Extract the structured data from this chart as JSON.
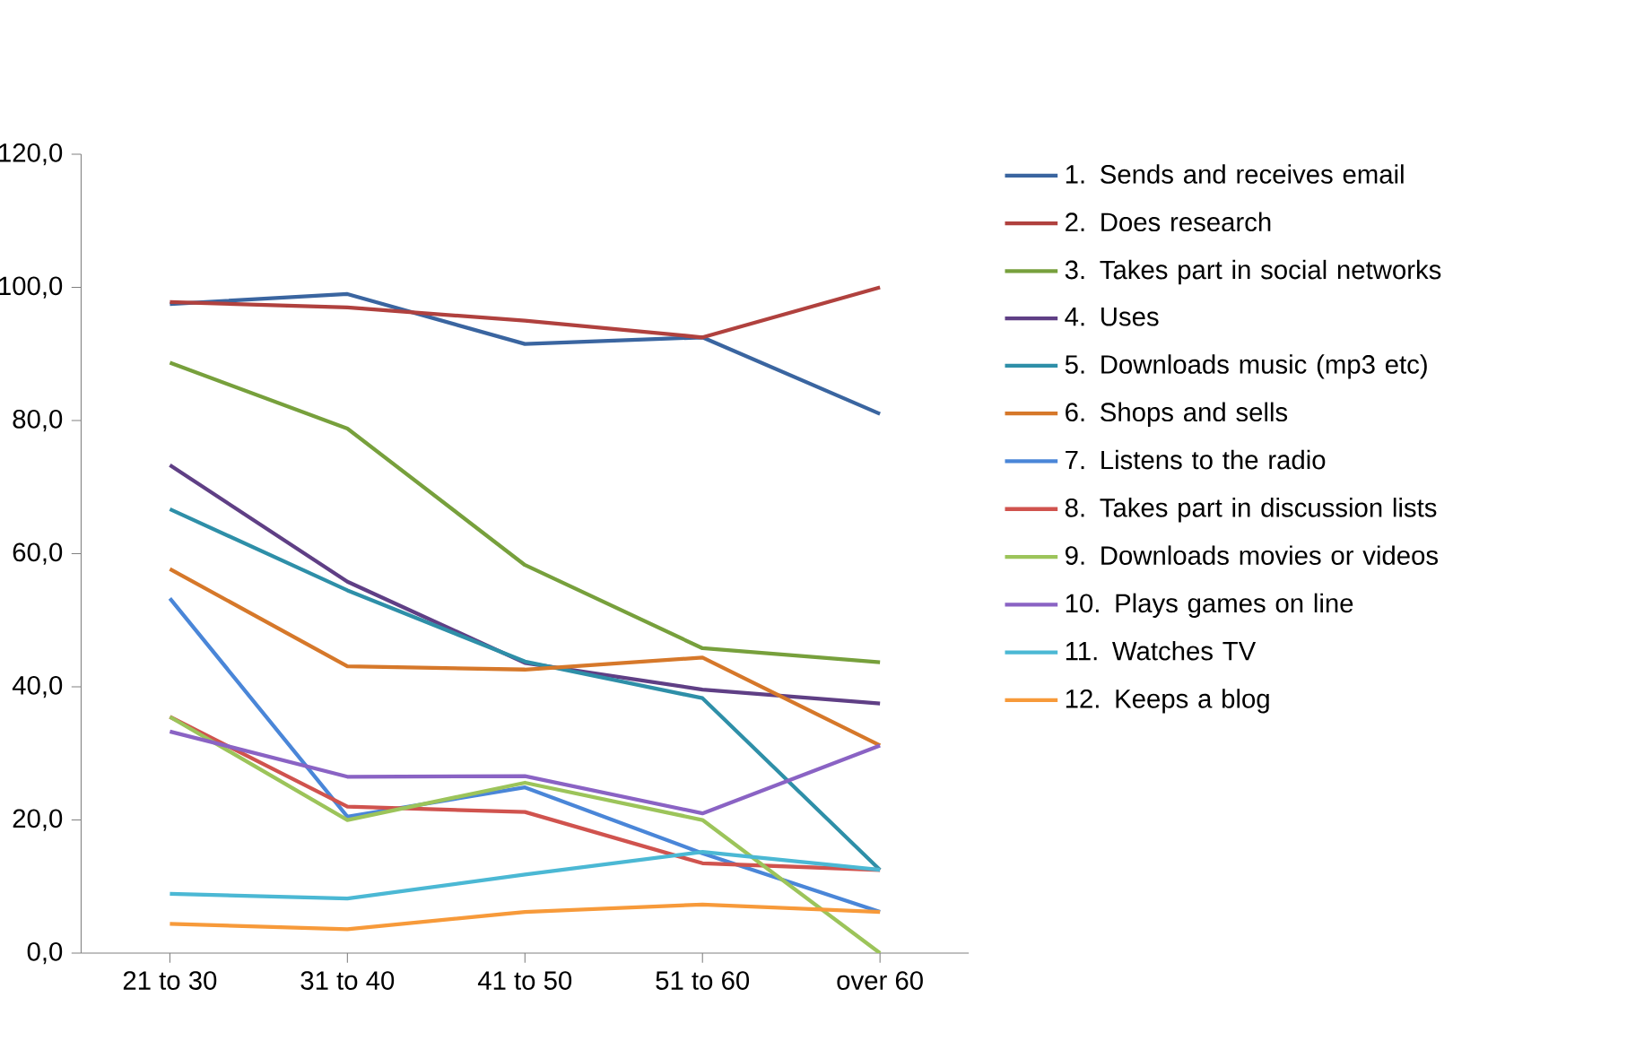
{
  "chart_data": {
    "type": "line",
    "legend": "right",
    "categories": [
      "21 to 30",
      "31 to 40",
      "41 to 50",
      "51 to 60",
      "over 60"
    ],
    "ylim": [
      0,
      120
    ],
    "yticks": [
      {
        "value": 0,
        "label": "0,0"
      },
      {
        "value": 20,
        "label": "20,0"
      },
      {
        "value": 40,
        "label": "40,0"
      },
      {
        "value": 60,
        "label": "60,0"
      },
      {
        "value": 80,
        "label": "80,0"
      },
      {
        "value": 100,
        "label": "100,0"
      },
      {
        "value": 120,
        "label": "120,0"
      }
    ],
    "series": [
      {
        "name": "1. Sends and receives email",
        "color": "#3a65a0",
        "values": [
          97.5,
          99,
          91.5,
          92.5,
          81
        ]
      },
      {
        "name": "2. Does research",
        "color": "#b0413e",
        "values": [
          97.8,
          97,
          95,
          92.5,
          100
        ]
      },
      {
        "name": "3. Takes part in social networks",
        "color": "#77a03c",
        "values": [
          88.7,
          78.8,
          58.3,
          45.8,
          43.7
        ]
      },
      {
        "name": "4. Uses",
        "color": "#5f3f85",
        "values": [
          73.3,
          55.8,
          43.6,
          39.6,
          37.5
        ]
      },
      {
        "name": "5. Downloads music (mp3 etc)",
        "color": "#2e8fa8",
        "values": [
          66.7,
          54.5,
          43.8,
          38.3,
          12.5
        ]
      },
      {
        "name": "6. Shops and sells",
        "color": "#d6782a",
        "values": [
          57.7,
          43.1,
          42.6,
          44.4,
          31.2
        ]
      },
      {
        "name": "7. Listens to the radio",
        "color": "#4a86d8",
        "values": [
          53.3,
          20.5,
          24.9,
          15,
          6.2
        ]
      },
      {
        "name": "8. Takes part in discussion lists",
        "color": "#d0534e",
        "values": [
          35.5,
          22,
          21.2,
          13.5,
          12.5
        ]
      },
      {
        "name": "9. Downloads movies or videos",
        "color": "#9cc45a",
        "values": [
          35.5,
          20,
          25.6,
          20,
          0
        ]
      },
      {
        "name": "10. Plays games on line",
        "color": "#8a63c4",
        "values": [
          33.3,
          26.5,
          26.6,
          21,
          31.2
        ]
      },
      {
        "name": "11. Watches TV",
        "color": "#4bb8d4",
        "values": [
          8.9,
          8.2,
          11.8,
          15.2,
          12.5
        ]
      },
      {
        "name": "12. Keeps a blog",
        "color": "#f79a3a",
        "values": [
          4.4,
          3.6,
          6.2,
          7.3,
          6.2
        ]
      }
    ]
  }
}
